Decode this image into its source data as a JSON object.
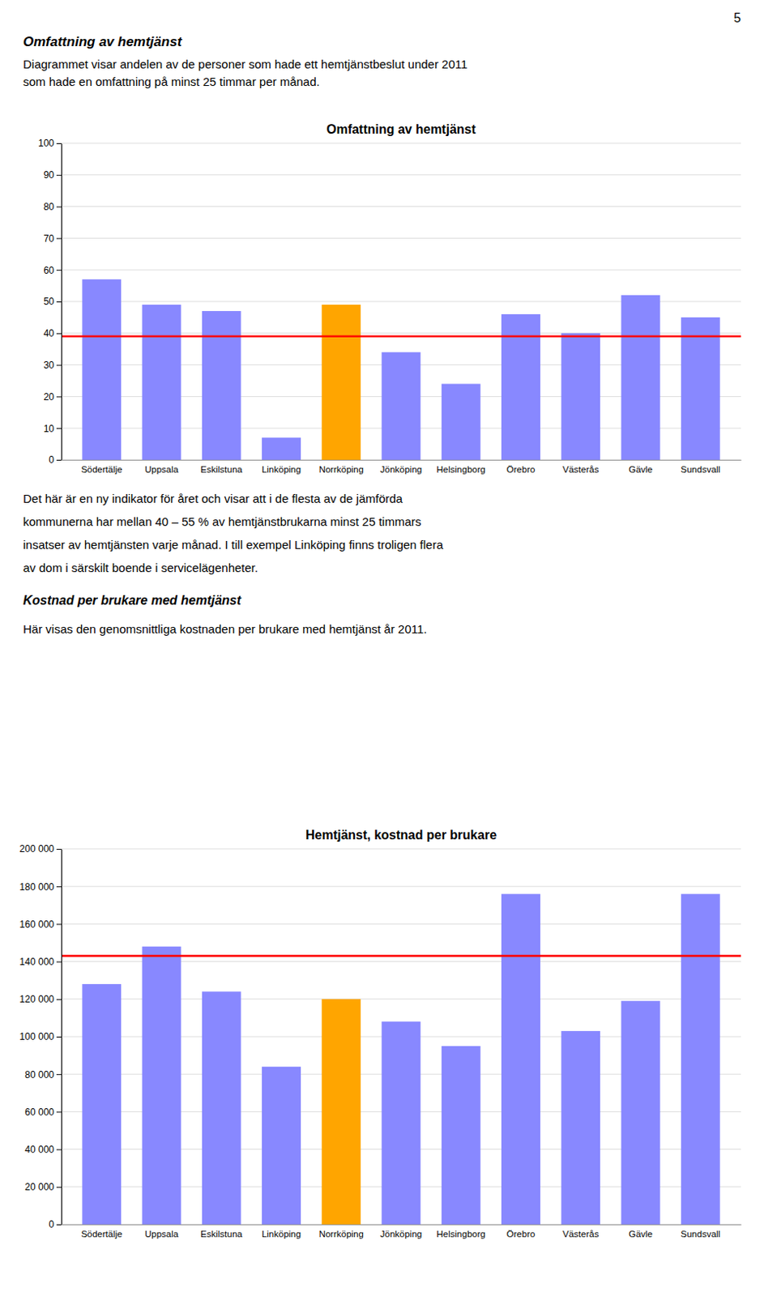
{
  "page": {
    "page_number": "5",
    "title": "Omfattning av hemtjänst",
    "subtitle": [
      "Diagrammet visar andelen av de personer som hade ett hemtjänstbeslut under 2011",
      "som hade en omfattning på minst 25 timmar per månad."
    ],
    "body_text": [
      "Det här är en ny indikator för året och visar att i de flesta av de jämförda",
      "kommunerna har mellan 40 – 55 % av hemtjänstbrukarna minst 25 timmars",
      "insatser av hemtjänsten varje månad. I till exempel Linköping finns troligen flera",
      "av dom i särskilt boende i servicelägenheter."
    ],
    "section_title": "Kostnad per brukare med hemtjänst",
    "section_text": "Här visas den genomsnittliga kostnaden per brukare med hemtjänst år 2011."
  },
  "chart_data": [
    {
      "type": "bar",
      "title": "Omfattning av hemtjänst",
      "categories": [
        "Södertälje",
        "Uppsala",
        "Eskilstuna",
        "Linköping",
        "Norrköping",
        "Jönköping",
        "Helsingborg",
        "Örebro",
        "Västerås",
        "Gävle",
        "Sundsvall"
      ],
      "values": [
        57,
        49,
        47,
        7,
        49,
        34,
        24,
        46,
        40,
        52,
        45
      ],
      "colors": [
        "#8888ff",
        "#8888ff",
        "#8888ff",
        "#8888ff",
        "#ffa500",
        "#8888ff",
        "#8888ff",
        "#8888ff",
        "#8888ff",
        "#8888ff",
        "#8888ff"
      ],
      "reference_line": {
        "value": 39,
        "color": "#ff0000"
      },
      "ylim": [
        0,
        100
      ],
      "yticks": [
        0,
        10,
        20,
        30,
        40,
        50,
        60,
        70,
        80,
        90,
        100
      ],
      "grid": true
    },
    {
      "type": "bar",
      "title": "Hemtjänst, kostnad per brukare",
      "categories": [
        "Södertälje",
        "Uppsala",
        "Eskilstuna",
        "Linköping",
        "Norrköping",
        "Jönköping",
        "Helsingborg",
        "Örebro",
        "Västerås",
        "Gävle",
        "Sundsvall"
      ],
      "values": [
        128000,
        148000,
        124000,
        84000,
        120000,
        108000,
        95000,
        176000,
        103000,
        119000,
        176000
      ],
      "colors": [
        "#8888ff",
        "#8888ff",
        "#8888ff",
        "#8888ff",
        "#ffa500",
        "#8888ff",
        "#8888ff",
        "#8888ff",
        "#8888ff",
        "#8888ff",
        "#8888ff"
      ],
      "reference_line": {
        "value": 143000,
        "color": "#ff0000"
      },
      "ylim": [
        0,
        200000
      ],
      "yticks": [
        0,
        {
          "value": 20000,
          "label": "20 000"
        },
        {
          "value": 40000,
          "label": "40 000"
        },
        {
          "value": 60000,
          "label": "60 000"
        },
        {
          "value": 80000,
          "label": "80 000"
        },
        {
          "value": 100000,
          "label": "100 000"
        },
        {
          "value": 120000,
          "label": "120 000"
        },
        {
          "value": 140000,
          "label": "140 000"
        },
        {
          "value": 160000,
          "label": "160 000"
        },
        {
          "value": 180000,
          "label": "180 000"
        },
        {
          "value": 200000,
          "label": "200 000"
        }
      ],
      "grid": true
    }
  ]
}
